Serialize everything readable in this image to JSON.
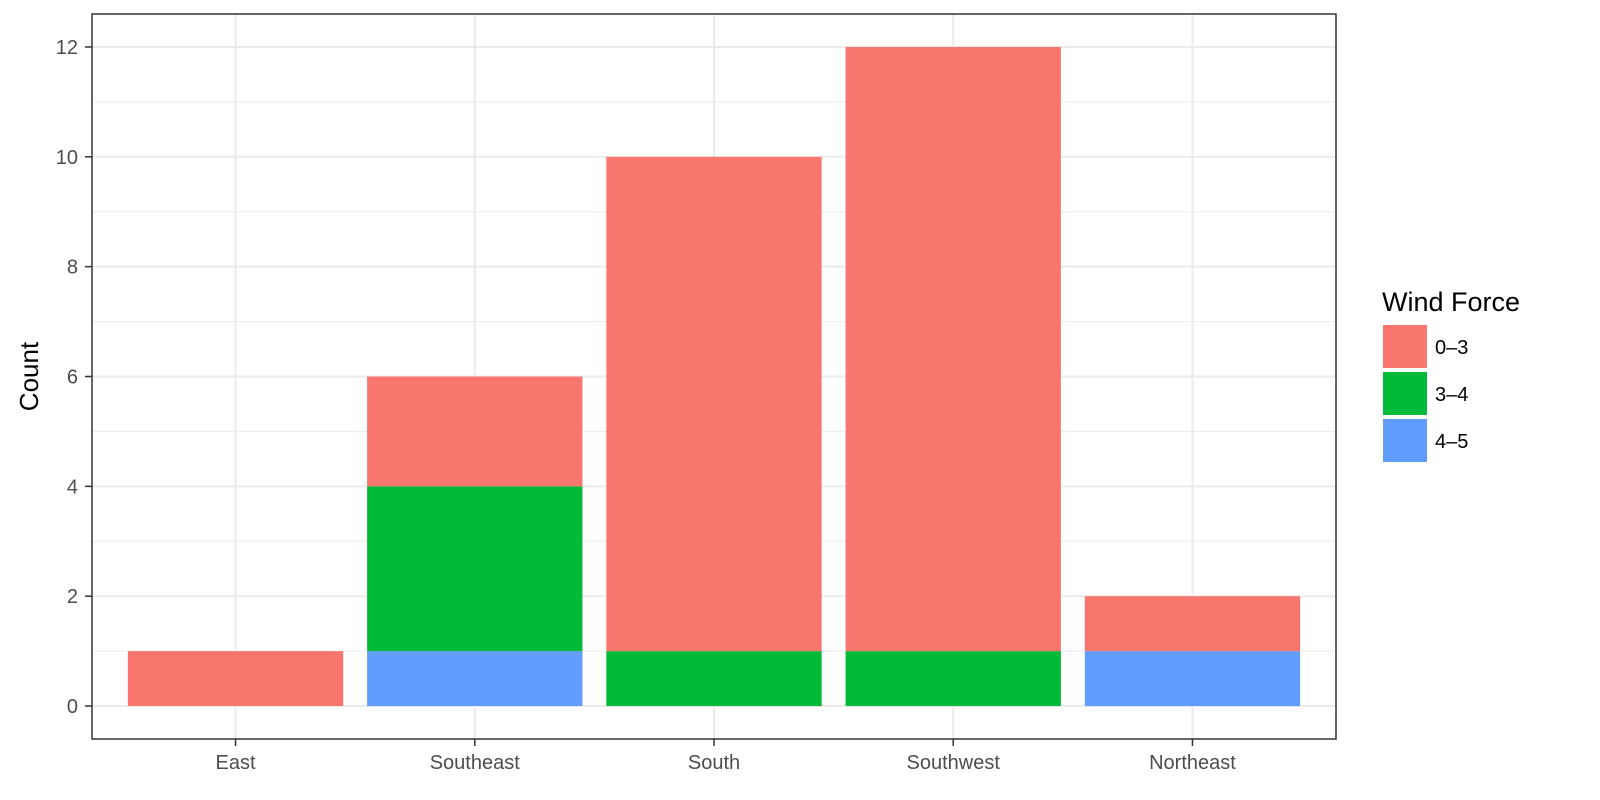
{
  "chart_data": {
    "type": "bar",
    "stacked": true,
    "title": "",
    "xlabel": "",
    "ylabel": "Count",
    "ylim": [
      -0.6,
      12.6
    ],
    "yticks": [
      0,
      2,
      4,
      6,
      8,
      10,
      12
    ],
    "grid": true,
    "legend": {
      "title": "Wind Force",
      "placement": "right"
    },
    "categories": [
      "East",
      "Southeast",
      "South",
      "Southwest",
      "Northeast"
    ],
    "series": [
      {
        "name": "4–5",
        "color": "#619CFF",
        "values": [
          0,
          1,
          0,
          0,
          1
        ]
      },
      {
        "name": "3–4",
        "color": "#00BA38",
        "values": [
          0,
          3,
          1,
          1,
          0
        ]
      },
      {
        "name": "0–3",
        "color": "#F8766D",
        "values": [
          1,
          2,
          9,
          11,
          1
        ]
      }
    ],
    "legend_order": [
      "0–3",
      "3–4",
      "4–5"
    ]
  }
}
